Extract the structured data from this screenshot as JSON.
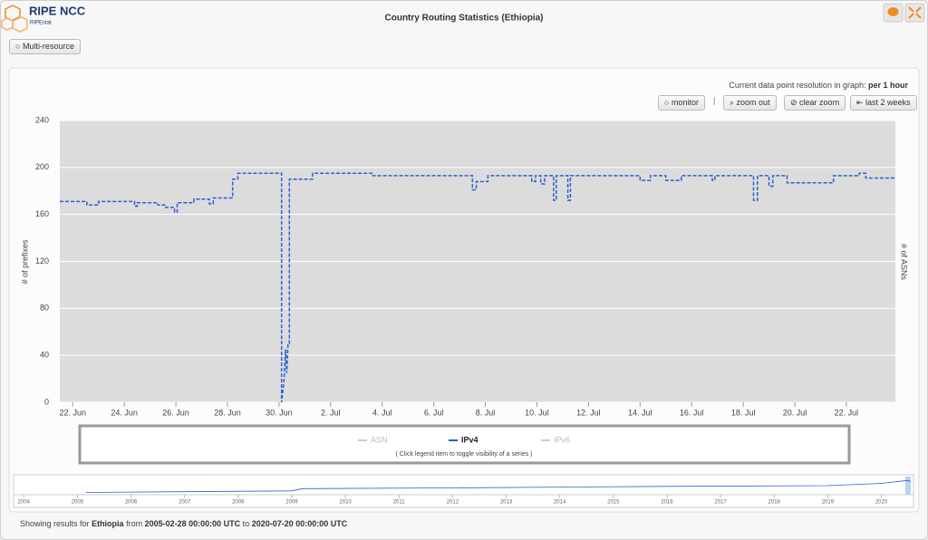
{
  "header": {
    "brand": "RIPE NCC",
    "sub_brand": "RIPEstat",
    "title": "Country Routing Statistics (Ethiopia)"
  },
  "buttons": {
    "multi_resource": "Multi-resource",
    "monitor": "monitor",
    "zoom_out": "zoom out",
    "clear_zoom": "clear zoom",
    "last_2_weeks": "last 2 weeks"
  },
  "resolution": {
    "label": "Current data point resolution in graph:",
    "value": "per 1 hour"
  },
  "legend_hint": "( Click legend item to toggle visibility of a series )",
  "footer": {
    "prefix": "Showing results for",
    "country": "Ethiopia",
    "from_word": "from",
    "start": "2005-02-28 00:00:00 UTC",
    "to_word": "to",
    "end": "2020-07-20 00:00:00 UTC"
  },
  "chart_data": [
    {
      "type": "line",
      "y_label": "# of prefixes",
      "y2_label": "# of ASNs",
      "grid": true,
      "line_style": "dashed",
      "xlim": [
        21.5,
        53.9
      ],
      "ylim": [
        0,
        240
      ],
      "yticks": [
        0,
        40,
        80,
        120,
        160,
        200,
        240
      ],
      "xticks": [
        {
          "value": 22,
          "label": "22. Jun"
        },
        {
          "value": 24,
          "label": "24. Jun"
        },
        {
          "value": 26,
          "label": "26. Jun"
        },
        {
          "value": 28,
          "label": "28. Jun"
        },
        {
          "value": 30,
          "label": "30. Jun"
        },
        {
          "value": 32,
          "label": "2. Jul"
        },
        {
          "value": 34,
          "label": "4. Jul"
        },
        {
          "value": 36,
          "label": "6. Jul"
        },
        {
          "value": 38,
          "label": "8. Jul"
        },
        {
          "value": 40,
          "label": "10. Jul"
        },
        {
          "value": 42,
          "label": "12. Jul"
        },
        {
          "value": 44,
          "label": "14. Jul"
        },
        {
          "value": 46,
          "label": "16. Jul"
        },
        {
          "value": 48,
          "label": "18. Jul"
        },
        {
          "value": 50,
          "label": "20. Jul"
        },
        {
          "value": 52,
          "label": "22. Jul"
        }
      ],
      "x": [
        21.5,
        22.55,
        22.55,
        23,
        23,
        24.4,
        24.4,
        24.5,
        24.5,
        25.3,
        25.3,
        25.6,
        25.6,
        25.95,
        25.95,
        26.05,
        26.05,
        26.7,
        26.7,
        27.3,
        27.3,
        27.45,
        27.45,
        28.2,
        28.2,
        28.4,
        28.4,
        30.1,
        30.1,
        30.2,
        30.25,
        30.3,
        30.35,
        30.4,
        30.4,
        31.3,
        31.3,
        33.6,
        33.6,
        37.5,
        37.5,
        37.65,
        37.65,
        38.1,
        38.1,
        39.8,
        39.8,
        39.95,
        39.95,
        40.15,
        40.15,
        40.3,
        40.3,
        40.65,
        40.65,
        40.75,
        40.75,
        41.2,
        41.2,
        41.3,
        41.3,
        44,
        44,
        44.4,
        44.4,
        45,
        45,
        45.6,
        45.6,
        46.8,
        46.8,
        46.9,
        46.9,
        48.4,
        48.4,
        48.55,
        48.55,
        49,
        49,
        49.15,
        49.15,
        49.7,
        49.7,
        51.5,
        51.5,
        52.5,
        52.5,
        52.75,
        52.75,
        53.9
      ],
      "series": [
        {
          "name": "ASN",
          "color": "#c8c8c8",
          "visible": false,
          "values": [
            null,
            null,
            null,
            null,
            null,
            null,
            null,
            null,
            null,
            null,
            null,
            null,
            null,
            null,
            null,
            null,
            null,
            null,
            null,
            null,
            null,
            null,
            null,
            null,
            null,
            null,
            null,
            null,
            null,
            null,
            null,
            null,
            null,
            null,
            null,
            null,
            null,
            null,
            null,
            null,
            null,
            null,
            null,
            null,
            null,
            null,
            null,
            null,
            null,
            null,
            null,
            null,
            null,
            null,
            null,
            null,
            null,
            null,
            null,
            null,
            null,
            null,
            null,
            null,
            null,
            null,
            null,
            null,
            null,
            null,
            null,
            null,
            null,
            null,
            null,
            null,
            null,
            null,
            null,
            null,
            null,
            null,
            null,
            null,
            null,
            null,
            null,
            null,
            null,
            null
          ]
        },
        {
          "name": "IPv4",
          "color": "#2b5fd0",
          "visible": true,
          "values": [
            171,
            171,
            168,
            168,
            171,
            171,
            167,
            167,
            170,
            170,
            168,
            168,
            166,
            166,
            162,
            162,
            170,
            170,
            173,
            173,
            169,
            169,
            174,
            174,
            190,
            190,
            195,
            195,
            0,
            20,
            45,
            25,
            50,
            50,
            190,
            190,
            195,
            195,
            193,
            193,
            181,
            181,
            188,
            188,
            193,
            193,
            188,
            188,
            193,
            193,
            186,
            186,
            193,
            193,
            172,
            172,
            193,
            193,
            172,
            172,
            193,
            193,
            189,
            189,
            193,
            193,
            189,
            189,
            193,
            193,
            189,
            189,
            193,
            193,
            172,
            172,
            193,
            193,
            184,
            184,
            193,
            193,
            187,
            187,
            193,
            193,
            195,
            195,
            191,
            191
          ]
        },
        {
          "name": "IPv6",
          "color": "#c8c8c8",
          "visible": false,
          "values": [
            null,
            null,
            null,
            null,
            null,
            null,
            null,
            null,
            null,
            null,
            null,
            null,
            null,
            null,
            null,
            null,
            null,
            null,
            null,
            null,
            null,
            null,
            null,
            null,
            null,
            null,
            null,
            null,
            null,
            null,
            null,
            null,
            null,
            null,
            null,
            null,
            null,
            null,
            null,
            null,
            null,
            null,
            null,
            null,
            null,
            null,
            null,
            null,
            null,
            null,
            null,
            null,
            null,
            null,
            null,
            null,
            null,
            null,
            null,
            null,
            null,
            null,
            null,
            null,
            null,
            null,
            null,
            null,
            null,
            null,
            null,
            null,
            null,
            null,
            null,
            null,
            null,
            null,
            null,
            null,
            null,
            null,
            null,
            null,
            null,
            null,
            null,
            null,
            null,
            null
          ]
        }
      ]
    },
    {
      "type": "line",
      "xlim": [
        2003.81,
        2020.6
      ],
      "ylim": [
        0,
        240
      ],
      "color": "#2b5fd0",
      "xticks": [
        2004,
        2005,
        2006,
        2007,
        2008,
        2009,
        2010,
        2011,
        2012,
        2013,
        2014,
        2015,
        2016,
        2017,
        2018,
        2019,
        2020
      ],
      "x": [
        2005.16,
        2007,
        2009,
        2009.2,
        2012,
        2016,
        2019,
        2020,
        2020.5,
        2020.55
      ],
      "values": [
        30,
        40,
        50,
        80,
        90,
        110,
        120,
        150,
        190,
        170
      ]
    }
  ]
}
